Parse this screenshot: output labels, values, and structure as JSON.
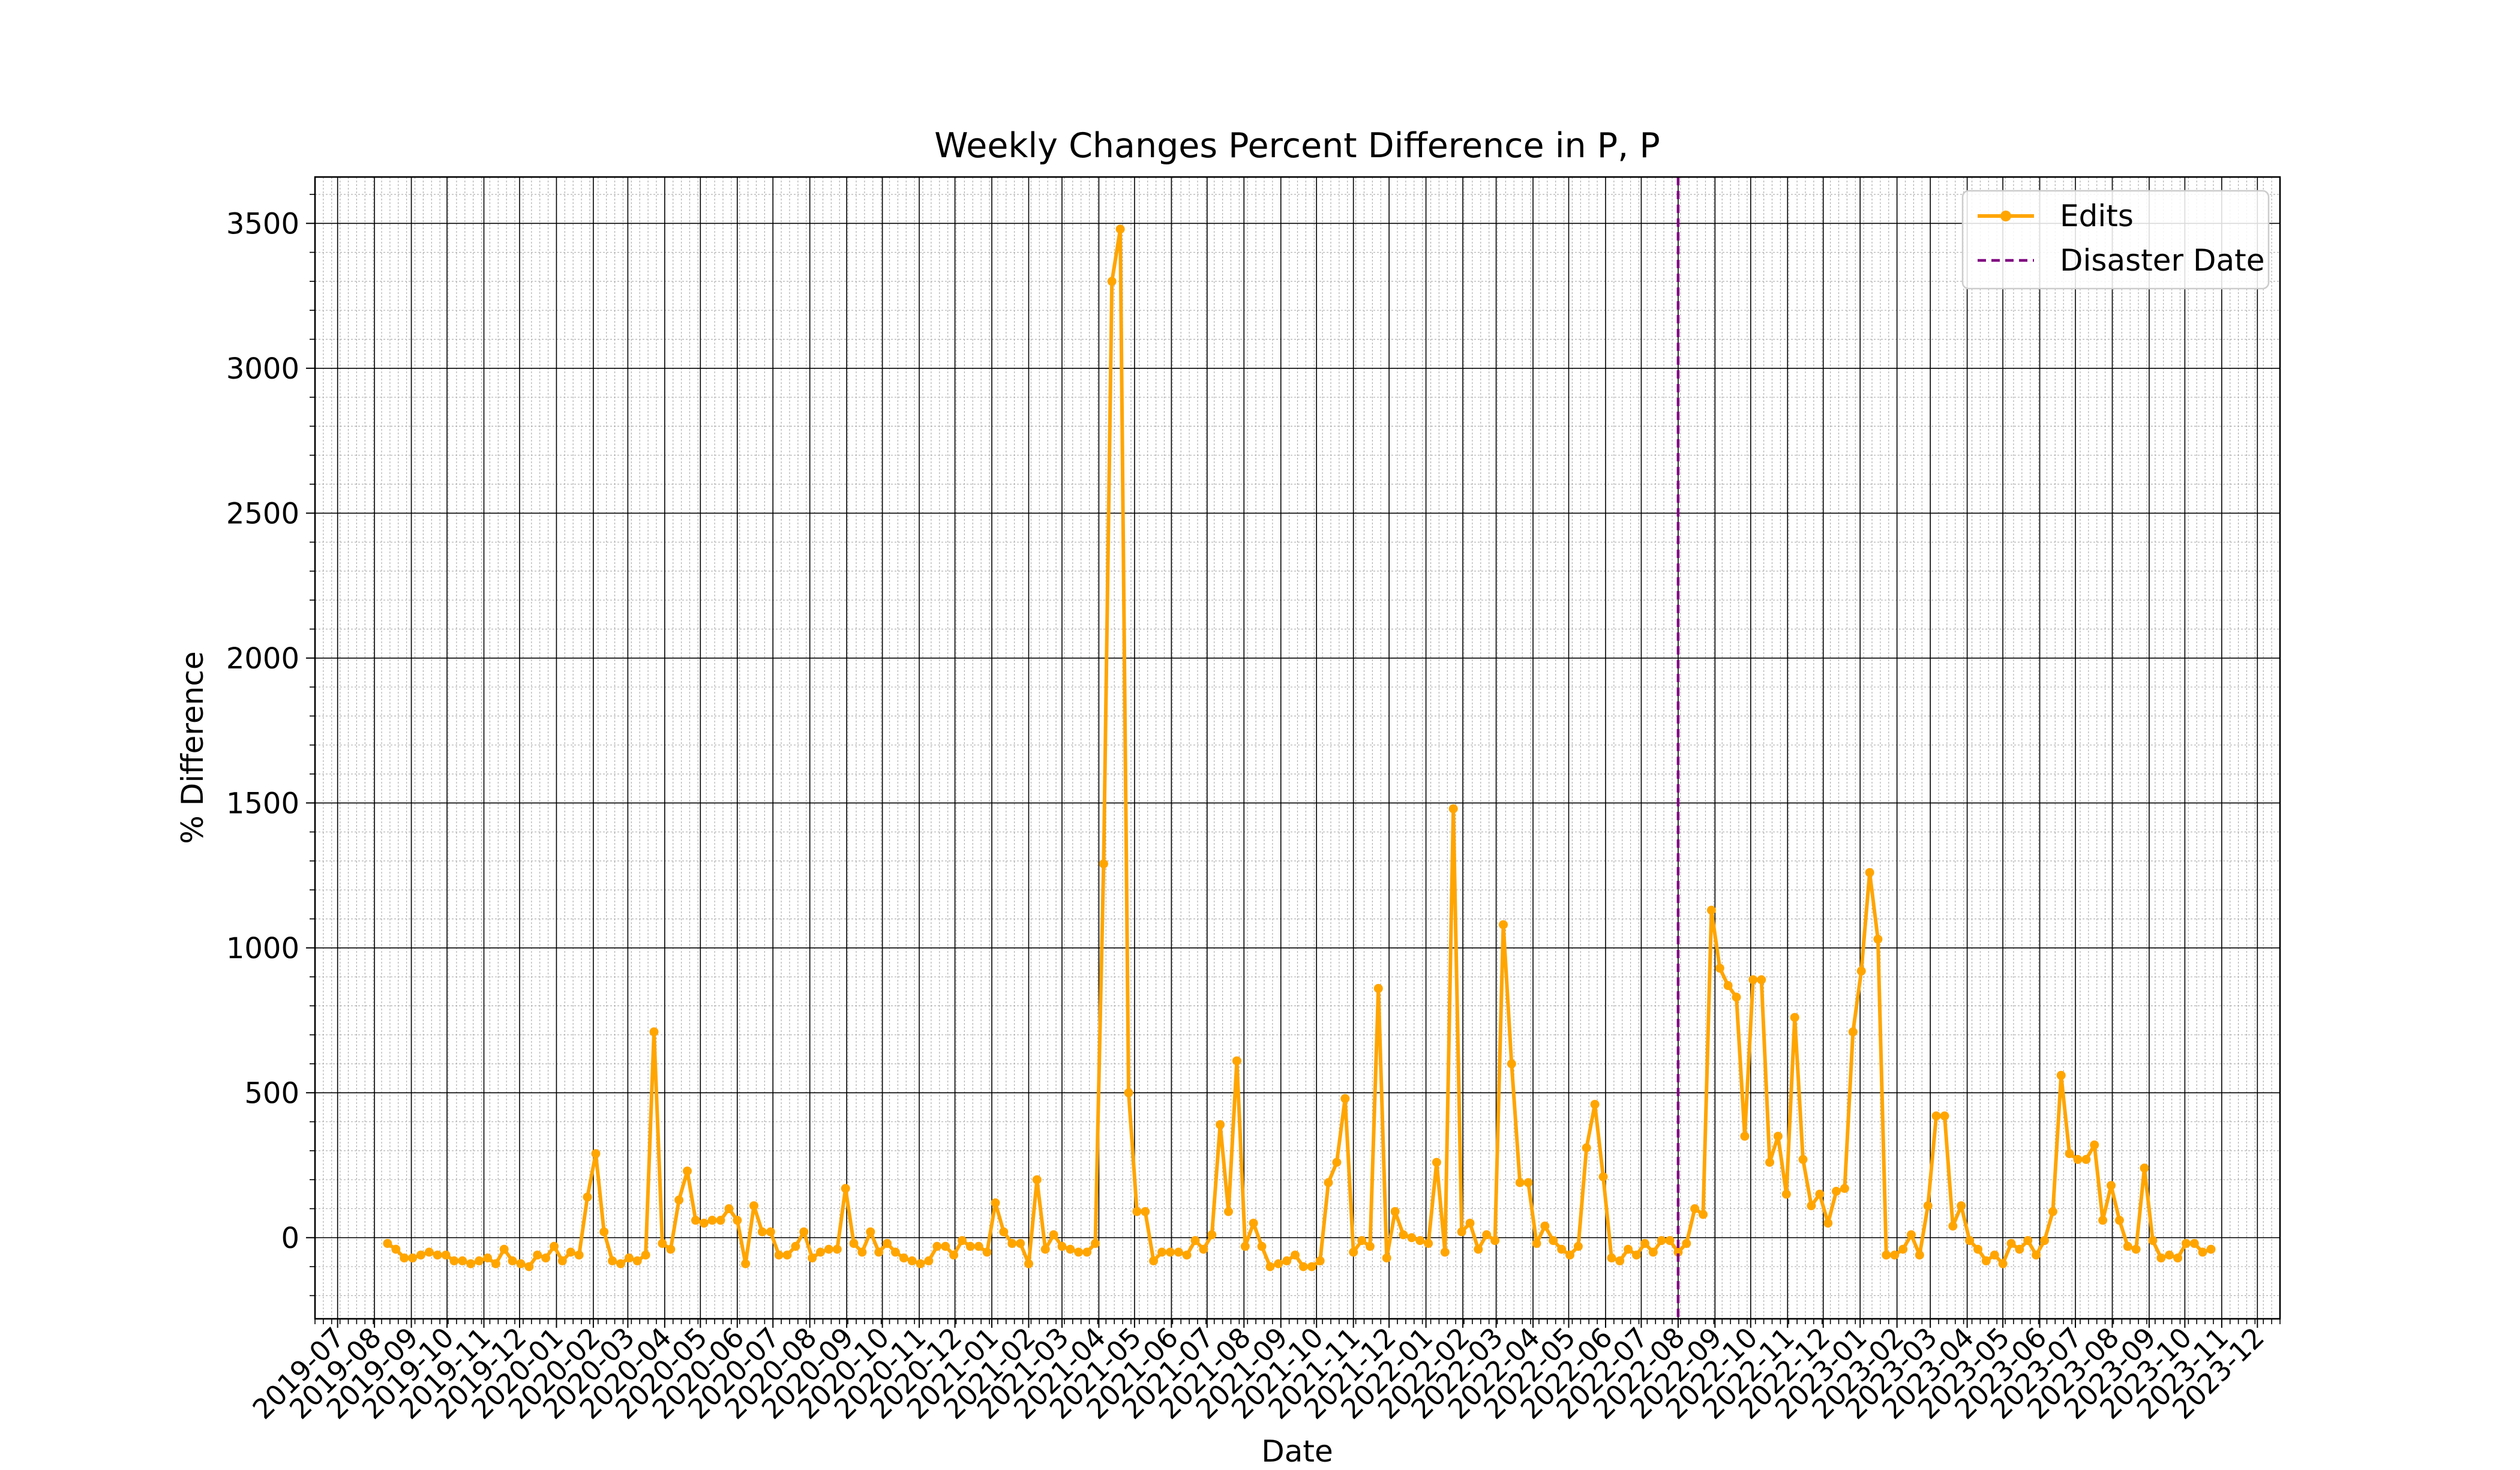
{
  "chart_data": {
    "type": "line",
    "title": "Weekly Changes Percent Difference in P, P",
    "xlabel": "Date",
    "ylabel": "% Difference",
    "xlim": [
      "2019-06-12",
      "2023-12-20"
    ],
    "ylim": [
      -280,
      3660
    ],
    "yticks": [
      0,
      500,
      1000,
      1500,
      2000,
      2500,
      3000,
      3500
    ],
    "xticks": [
      "2019-07",
      "2019-08",
      "2019-09",
      "2019-10",
      "2019-11",
      "2019-12",
      "2020-01",
      "2020-02",
      "2020-03",
      "2020-04",
      "2020-05",
      "2020-06",
      "2020-07",
      "2020-08",
      "2020-09",
      "2020-10",
      "2020-11",
      "2020-12",
      "2021-01",
      "2021-02",
      "2021-03",
      "2021-04",
      "2021-05",
      "2021-06",
      "2021-07",
      "2021-08",
      "2021-09",
      "2021-10",
      "2021-11",
      "2021-12",
      "2022-01",
      "2022-02",
      "2022-03",
      "2022-04",
      "2022-05",
      "2022-06",
      "2022-07",
      "2022-08",
      "2022-09",
      "2022-10",
      "2022-11",
      "2022-12",
      "2023-01",
      "2023-02",
      "2023-03",
      "2023-04",
      "2023-05",
      "2023-06",
      "2023-07",
      "2023-08",
      "2023-09",
      "2023-10",
      "2023-11",
      "2023-12"
    ],
    "grid": true,
    "legend_position": "upper right",
    "series": [
      {
        "name": "Edits",
        "color": "#FFA500",
        "marker": "circle",
        "start_date": "2019-08-12",
        "interval_days": 7,
        "values": [
          -20,
          -40,
          -70,
          -70,
          -60,
          -50,
          -60,
          -60,
          -80,
          -80,
          -90,
          -80,
          -70,
          -90,
          -40,
          -80,
          -90,
          -100,
          -60,
          -70,
          -30,
          -80,
          -50,
          -60,
          140,
          290,
          20,
          -80,
          -90,
          -70,
          -80,
          -60,
          710,
          -20,
          -40,
          130,
          230,
          60,
          50,
          60,
          60,
          100,
          60,
          -90,
          110,
          20,
          20,
          -60,
          -60,
          -30,
          20,
          -70,
          -50,
          -40,
          -40,
          170,
          -20,
          -50,
          20,
          -50,
          -20,
          -50,
          -70,
          -80,
          -90,
          -80,
          -30,
          -30,
          -60,
          -10,
          -30,
          -30,
          -50,
          120,
          20,
          -20,
          -20,
          -90,
          200,
          -40,
          10,
          -30,
          -40,
          -50,
          -50,
          -20,
          1290,
          3300,
          3480,
          500,
          90,
          90,
          -80,
          -50,
          -50,
          -50,
          -60,
          -10,
          -40,
          10,
          390,
          90,
          610,
          -30,
          50,
          -30,
          -100,
          -90,
          -80,
          -60,
          -100,
          -100,
          -80,
          190,
          260,
          480,
          -50,
          -10,
          -30,
          860,
          -70,
          90,
          10,
          0,
          -10,
          -20,
          260,
          -50,
          1480,
          20,
          50,
          -40,
          10,
          -10,
          1080,
          600,
          190,
          190,
          -20,
          40,
          -10,
          -40,
          -60,
          -30,
          310,
          460,
          210,
          -70,
          -80,
          -40,
          -60,
          -20,
          -50,
          -10,
          -10,
          -50,
          -20,
          100,
          80,
          1130,
          930,
          870,
          830,
          350,
          890,
          890,
          260,
          350,
          150,
          760,
          270,
          110,
          150,
          50,
          160,
          170,
          710,
          920,
          1260,
          1030,
          -60,
          -60,
          -40,
          10,
          -60,
          110,
          420,
          420,
          40,
          110,
          -10,
          -40,
          -80,
          -60,
          -90,
          -20,
          -40,
          -10,
          -60,
          -10,
          90,
          560,
          290,
          270,
          270,
          320,
          60,
          180,
          60,
          -30,
          -40,
          240,
          -10,
          -70,
          -60,
          -70,
          -20,
          -20,
          -50,
          -40
        ]
      },
      {
        "name": "Disaster Date",
        "color": "#800080",
        "style": "dashed",
        "x": "2022-08-01"
      }
    ]
  }
}
